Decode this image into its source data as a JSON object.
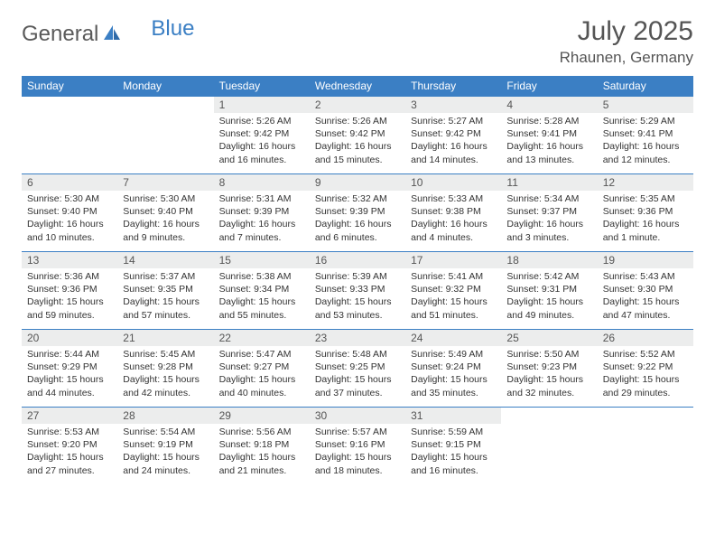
{
  "brand": {
    "part1": "General",
    "part2": "Blue"
  },
  "title": "July 2025",
  "location": "Rhaunen, Germany",
  "colors": {
    "header_bg": "#3b7fc4",
    "header_text": "#ffffff",
    "daynum_bg": "#eceded",
    "border": "#3b7fc4",
    "text": "#333333",
    "title_text": "#555555",
    "page_bg": "#ffffff"
  },
  "fonts": {
    "base_family": "Arial",
    "title_size_pt": 22,
    "header_size_pt": 9,
    "cell_size_pt": 8
  },
  "day_headers": [
    "Sunday",
    "Monday",
    "Tuesday",
    "Wednesday",
    "Thursday",
    "Friday",
    "Saturday"
  ],
  "weeks": [
    [
      {
        "blank": true
      },
      {
        "blank": true
      },
      {
        "n": "1",
        "sr": "5:26 AM",
        "ss": "9:42 PM",
        "dl": "16 hours and 16 minutes."
      },
      {
        "n": "2",
        "sr": "5:26 AM",
        "ss": "9:42 PM",
        "dl": "16 hours and 15 minutes."
      },
      {
        "n": "3",
        "sr": "5:27 AM",
        "ss": "9:42 PM",
        "dl": "16 hours and 14 minutes."
      },
      {
        "n": "4",
        "sr": "5:28 AM",
        "ss": "9:41 PM",
        "dl": "16 hours and 13 minutes."
      },
      {
        "n": "5",
        "sr": "5:29 AM",
        "ss": "9:41 PM",
        "dl": "16 hours and 12 minutes."
      }
    ],
    [
      {
        "n": "6",
        "sr": "5:30 AM",
        "ss": "9:40 PM",
        "dl": "16 hours and 10 minutes."
      },
      {
        "n": "7",
        "sr": "5:30 AM",
        "ss": "9:40 PM",
        "dl": "16 hours and 9 minutes."
      },
      {
        "n": "8",
        "sr": "5:31 AM",
        "ss": "9:39 PM",
        "dl": "16 hours and 7 minutes."
      },
      {
        "n": "9",
        "sr": "5:32 AM",
        "ss": "9:39 PM",
        "dl": "16 hours and 6 minutes."
      },
      {
        "n": "10",
        "sr": "5:33 AM",
        "ss": "9:38 PM",
        "dl": "16 hours and 4 minutes."
      },
      {
        "n": "11",
        "sr": "5:34 AM",
        "ss": "9:37 PM",
        "dl": "16 hours and 3 minutes."
      },
      {
        "n": "12",
        "sr": "5:35 AM",
        "ss": "9:36 PM",
        "dl": "16 hours and 1 minute."
      }
    ],
    [
      {
        "n": "13",
        "sr": "5:36 AM",
        "ss": "9:36 PM",
        "dl": "15 hours and 59 minutes."
      },
      {
        "n": "14",
        "sr": "5:37 AM",
        "ss": "9:35 PM",
        "dl": "15 hours and 57 minutes."
      },
      {
        "n": "15",
        "sr": "5:38 AM",
        "ss": "9:34 PM",
        "dl": "15 hours and 55 minutes."
      },
      {
        "n": "16",
        "sr": "5:39 AM",
        "ss": "9:33 PM",
        "dl": "15 hours and 53 minutes."
      },
      {
        "n": "17",
        "sr": "5:41 AM",
        "ss": "9:32 PM",
        "dl": "15 hours and 51 minutes."
      },
      {
        "n": "18",
        "sr": "5:42 AM",
        "ss": "9:31 PM",
        "dl": "15 hours and 49 minutes."
      },
      {
        "n": "19",
        "sr": "5:43 AM",
        "ss": "9:30 PM",
        "dl": "15 hours and 47 minutes."
      }
    ],
    [
      {
        "n": "20",
        "sr": "5:44 AM",
        "ss": "9:29 PM",
        "dl": "15 hours and 44 minutes."
      },
      {
        "n": "21",
        "sr": "5:45 AM",
        "ss": "9:28 PM",
        "dl": "15 hours and 42 minutes."
      },
      {
        "n": "22",
        "sr": "5:47 AM",
        "ss": "9:27 PM",
        "dl": "15 hours and 40 minutes."
      },
      {
        "n": "23",
        "sr": "5:48 AM",
        "ss": "9:25 PM",
        "dl": "15 hours and 37 minutes."
      },
      {
        "n": "24",
        "sr": "5:49 AM",
        "ss": "9:24 PM",
        "dl": "15 hours and 35 minutes."
      },
      {
        "n": "25",
        "sr": "5:50 AM",
        "ss": "9:23 PM",
        "dl": "15 hours and 32 minutes."
      },
      {
        "n": "26",
        "sr": "5:52 AM",
        "ss": "9:22 PM",
        "dl": "15 hours and 29 minutes."
      }
    ],
    [
      {
        "n": "27",
        "sr": "5:53 AM",
        "ss": "9:20 PM",
        "dl": "15 hours and 27 minutes."
      },
      {
        "n": "28",
        "sr": "5:54 AM",
        "ss": "9:19 PM",
        "dl": "15 hours and 24 minutes."
      },
      {
        "n": "29",
        "sr": "5:56 AM",
        "ss": "9:18 PM",
        "dl": "15 hours and 21 minutes."
      },
      {
        "n": "30",
        "sr": "5:57 AM",
        "ss": "9:16 PM",
        "dl": "15 hours and 18 minutes."
      },
      {
        "n": "31",
        "sr": "5:59 AM",
        "ss": "9:15 PM",
        "dl": "15 hours and 16 minutes."
      },
      {
        "blank": true
      },
      {
        "blank": true
      }
    ]
  ],
  "labels": {
    "sunrise": "Sunrise: ",
    "sunset": "Sunset: ",
    "daylight": "Daylight: "
  }
}
